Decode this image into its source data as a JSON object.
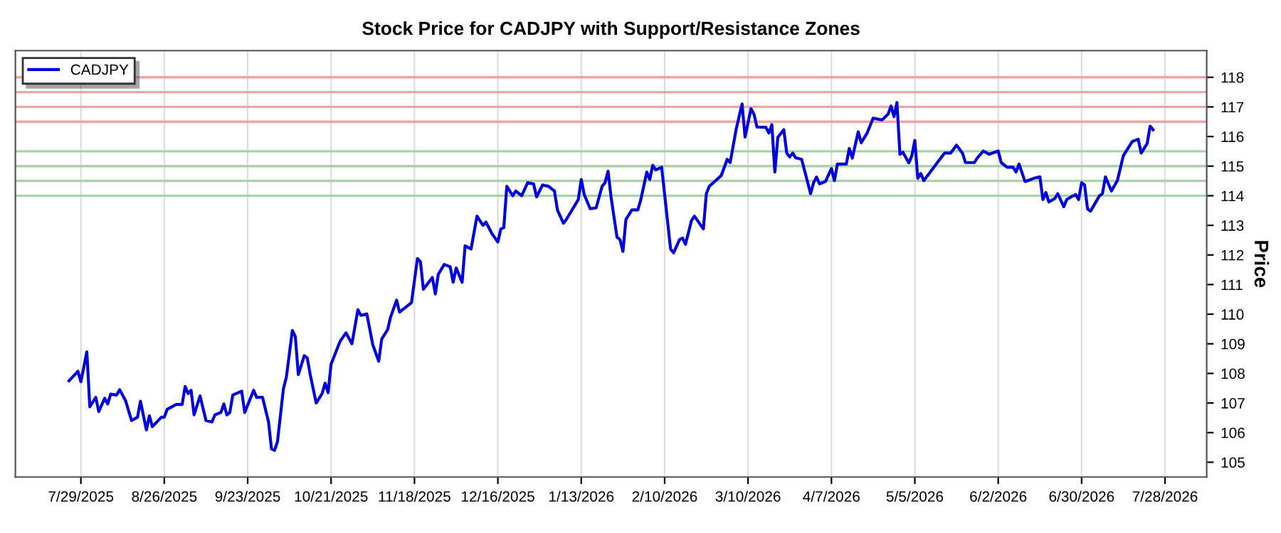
{
  "chart_data": {
    "type": "line",
    "title": "Stock Price for CADJPY with Support/Resistance Zones",
    "ylabel": "Price",
    "x": [
      "2025-07-25",
      "2025-07-28",
      "2025-07-29",
      "2025-07-31",
      "2025-08-01",
      "2025-08-03",
      "2025-08-04",
      "2025-08-06",
      "2025-08-07",
      "2025-08-08",
      "2025-08-10",
      "2025-08-11",
      "2025-08-13",
      "2025-08-15",
      "2025-08-17",
      "2025-08-18",
      "2025-08-20",
      "2025-08-21",
      "2025-08-22",
      "2025-08-25",
      "2025-08-26",
      "2025-08-27",
      "2025-08-30",
      "2025-09-01",
      "2025-09-02",
      "2025-09-03",
      "2025-09-04",
      "2025-09-05",
      "2025-09-07",
      "2025-09-09",
      "2025-09-11",
      "2025-09-12",
      "2025-09-14",
      "2025-09-15",
      "2025-09-16",
      "2025-09-17",
      "2025-09-18",
      "2025-09-21",
      "2025-09-22",
      "2025-09-25",
      "2025-09-26",
      "2025-09-28",
      "2025-09-30",
      "2025-10-01",
      "2025-10-02",
      "2025-10-03",
      "2025-10-05",
      "2025-10-06",
      "2025-10-08",
      "2025-10-09",
      "2025-10-10",
      "2025-10-12",
      "2025-10-13",
      "2025-10-14",
      "2025-10-16",
      "2025-10-18",
      "2025-10-19",
      "2025-10-20",
      "2025-10-21",
      "2025-10-24",
      "2025-10-26",
      "2025-10-28",
      "2025-10-30",
      "2025-10-31",
      "2025-11-02",
      "2025-11-04",
      "2025-11-06",
      "2025-11-07",
      "2025-11-09",
      "2025-11-10",
      "2025-11-12",
      "2025-11-13",
      "2025-11-17",
      "2025-11-19",
      "2025-11-20",
      "2025-11-21",
      "2025-11-24",
      "2025-11-25",
      "2025-11-26",
      "2025-11-28",
      "2025-11-30",
      "2025-12-01",
      "2025-12-02",
      "2025-12-04",
      "2025-12-05",
      "2025-12-07",
      "2025-12-09",
      "2025-12-11",
      "2025-12-12",
      "2025-12-14",
      "2025-12-16",
      "2025-12-17",
      "2025-12-18",
      "2025-12-19",
      "2025-12-21",
      "2025-12-22",
      "2025-12-24",
      "2025-12-26",
      "2025-12-28",
      "2025-12-29",
      "2025-12-31",
      "2026-01-02",
      "2026-01-04",
      "2026-01-05",
      "2026-01-07",
      "2026-01-08",
      "2026-01-12",
      "2026-01-13",
      "2026-01-14",
      "2026-01-16",
      "2026-01-18",
      "2026-01-20",
      "2026-01-21",
      "2026-01-22",
      "2026-01-23",
      "2026-01-25",
      "2026-01-26",
      "2026-01-27",
      "2026-01-28",
      "2026-01-30",
      "2026-02-01",
      "2026-02-02",
      "2026-02-04",
      "2026-02-05",
      "2026-02-06",
      "2026-02-07",
      "2026-02-09",
      "2026-02-10",
      "2026-02-12",
      "2026-02-13",
      "2026-02-15",
      "2026-02-16",
      "2026-02-17",
      "2026-02-19",
      "2026-02-20",
      "2026-02-23",
      "2026-02-24",
      "2026-02-25",
      "2026-03-01",
      "2026-03-03",
      "2026-03-04",
      "2026-03-06",
      "2026-03-08",
      "2026-03-09",
      "2026-03-11",
      "2026-03-12",
      "2026-03-13",
      "2026-03-16",
      "2026-03-17",
      "2026-03-18",
      "2026-03-19",
      "2026-03-20",
      "2026-03-22",
      "2026-03-23",
      "2026-03-24",
      "2026-03-25",
      "2026-03-26",
      "2026-03-28",
      "2026-03-31",
      "2026-04-01",
      "2026-04-02",
      "2026-04-03",
      "2026-04-05",
      "2026-04-07",
      "2026-04-08",
      "2026-04-09",
      "2026-04-12",
      "2026-04-13",
      "2026-04-14",
      "2026-04-16",
      "2026-04-17",
      "2026-04-19",
      "2026-04-21",
      "2026-04-24",
      "2026-04-26",
      "2026-04-27",
      "2026-04-28",
      "2026-04-29",
      "2026-04-30",
      "2026-05-01",
      "2026-05-03",
      "2026-05-04",
      "2026-05-05",
      "2026-05-06",
      "2026-05-07",
      "2026-05-08",
      "2026-05-14",
      "2026-05-15",
      "2026-05-17",
      "2026-05-19",
      "2026-05-21",
      "2026-05-22",
      "2026-05-25",
      "2026-05-26",
      "2026-05-28",
      "2026-05-30",
      "2026-05-31",
      "2026-06-02",
      "2026-06-03",
      "2026-06-05",
      "2026-06-07",
      "2026-06-08",
      "2026-06-09",
      "2026-06-11",
      "2026-06-13",
      "2026-06-14",
      "2026-06-16",
      "2026-06-17",
      "2026-06-18",
      "2026-06-19",
      "2026-06-21",
      "2026-06-22",
      "2026-06-24",
      "2026-06-25",
      "2026-06-27",
      "2026-06-28",
      "2026-06-29",
      "2026-06-30",
      "2026-07-01",
      "2026-07-02",
      "2026-07-03",
      "2026-07-06",
      "2026-07-07",
      "2026-07-08",
      "2026-07-10",
      "2026-07-12",
      "2026-07-14",
      "2026-07-17",
      "2026-07-19",
      "2026-07-20",
      "2026-07-22",
      "2026-07-23",
      "2026-07-24"
    ],
    "series": [
      {
        "name": "CADJPY",
        "color": "#0000dd",
        "values": [
          107.75,
          108.07,
          107.72,
          108.73,
          106.87,
          107.19,
          106.71,
          107.16,
          106.97,
          107.3,
          107.27,
          107.45,
          107.08,
          106.41,
          106.52,
          107.06,
          106.09,
          106.57,
          106.2,
          106.52,
          106.52,
          106.79,
          106.95,
          106.95,
          107.56,
          107.32,
          107.43,
          106.6,
          107.24,
          106.41,
          106.36,
          106.6,
          106.68,
          106.97,
          106.6,
          106.68,
          107.27,
          107.4,
          106.68,
          107.43,
          107.19,
          107.19,
          106.36,
          105.45,
          105.4,
          105.69,
          107.48,
          107.88,
          109.45,
          109.24,
          107.96,
          108.6,
          108.52,
          107.96,
          107.0,
          107.32,
          107.67,
          107.35,
          108.31,
          109.08,
          109.37,
          109.0,
          110.15,
          109.96,
          110.01,
          108.97,
          108.41,
          109.16,
          109.48,
          109.91,
          110.47,
          110.07,
          110.39,
          111.88,
          111.77,
          110.84,
          111.24,
          110.68,
          111.35,
          111.68,
          111.6,
          111.08,
          111.56,
          111.08,
          112.31,
          112.2,
          113.31,
          113.0,
          113.11,
          112.72,
          112.44,
          112.88,
          112.92,
          114.32,
          114.0,
          114.16,
          114.0,
          114.44,
          114.4,
          113.96,
          114.36,
          114.32,
          114.16,
          113.52,
          113.07,
          113.2,
          113.87,
          114.55,
          114.04,
          113.56,
          113.59,
          114.32,
          114.44,
          114.83,
          113.96,
          112.6,
          112.52,
          112.12,
          113.2,
          113.52,
          113.52,
          113.87,
          114.8,
          114.55,
          115.03,
          114.87,
          114.96,
          114.04,
          112.2,
          112.07,
          112.52,
          112.57,
          112.36,
          113.16,
          113.31,
          112.88,
          114.07,
          114.32,
          114.68,
          115.23,
          115.12,
          116.24,
          117.1,
          115.98,
          116.94,
          116.75,
          116.32,
          116.31,
          116.12,
          116.4,
          114.8,
          115.97,
          116.23,
          115.44,
          115.31,
          115.44,
          115.28,
          115.23,
          114.07,
          114.44,
          114.63,
          114.4,
          114.48,
          114.92,
          114.51,
          115.07,
          115.07,
          115.6,
          115.27,
          116.16,
          115.79,
          116.12,
          116.62,
          116.56,
          116.75,
          117.03,
          116.67,
          117.15,
          115.4,
          115.47,
          115.11,
          115.35,
          115.87,
          114.59,
          114.75,
          114.51,
          115.31,
          115.44,
          115.44,
          115.71,
          115.44,
          115.12,
          115.12,
          115.28,
          115.51,
          115.4,
          115.44,
          115.51,
          115.12,
          114.96,
          114.96,
          114.8,
          115.07,
          114.48,
          114.55,
          114.59,
          114.64,
          113.87,
          114.11,
          113.79,
          113.91,
          114.07,
          113.63,
          113.87,
          113.99,
          114.04,
          113.87,
          114.44,
          114.36,
          113.55,
          113.48,
          114.0,
          114.07,
          114.64,
          114.16,
          114.51,
          115.35,
          115.83,
          115.91,
          115.44,
          115.76,
          116.35,
          116.23
        ]
      }
    ],
    "xlim": [
      "2025-07-07",
      "2026-08-11"
    ],
    "xticks": [
      {
        "value": "2025-07-29",
        "label": "7/29/2025"
      },
      {
        "value": "2025-08-26",
        "label": "8/26/2025"
      },
      {
        "value": "2025-09-23",
        "label": "9/23/2025"
      },
      {
        "value": "2025-10-21",
        "label": "10/21/2025"
      },
      {
        "value": "2025-11-18",
        "label": "11/18/2025"
      },
      {
        "value": "2025-12-16",
        "label": "12/16/2025"
      },
      {
        "value": "2026-01-13",
        "label": "1/13/2026"
      },
      {
        "value": "2026-02-10",
        "label": "2/10/2026"
      },
      {
        "value": "2026-03-10",
        "label": "3/10/2026"
      },
      {
        "value": "2026-04-07",
        "label": "4/7/2026"
      },
      {
        "value": "2026-05-05",
        "label": "5/5/2026"
      },
      {
        "value": "2026-06-02",
        "label": "6/2/2026"
      },
      {
        "value": "2026-06-30",
        "label": "6/30/2026"
      },
      {
        "value": "2026-07-28",
        "label": "7/28/2026"
      }
    ],
    "ylim": [
      104.5,
      118.9
    ],
    "yticks": [
      105,
      106,
      107,
      108,
      109,
      110,
      111,
      112,
      113,
      114,
      115,
      116,
      117,
      118
    ],
    "ref_lines": [
      {
        "axis": "y",
        "value": 116.5,
        "color": "#f4a3a3"
      },
      {
        "axis": "y",
        "value": 117,
        "color": "#f4a3a3"
      },
      {
        "axis": "y",
        "value": 117.5,
        "color": "#f4a3a3"
      },
      {
        "axis": "y",
        "value": 118,
        "color": "#f4a3a3"
      },
      {
        "axis": "y",
        "value": 114,
        "color": "#a6d6a6"
      },
      {
        "axis": "y",
        "value": 114.5,
        "color": "#a6d6a6"
      },
      {
        "axis": "y",
        "value": 115,
        "color": "#a6d6a6"
      },
      {
        "axis": "y",
        "value": 115.5,
        "color": "#a6d6a6"
      }
    ],
    "grid": "x",
    "legend": "top left",
    "line_style": "solid",
    "marker": "none"
  }
}
